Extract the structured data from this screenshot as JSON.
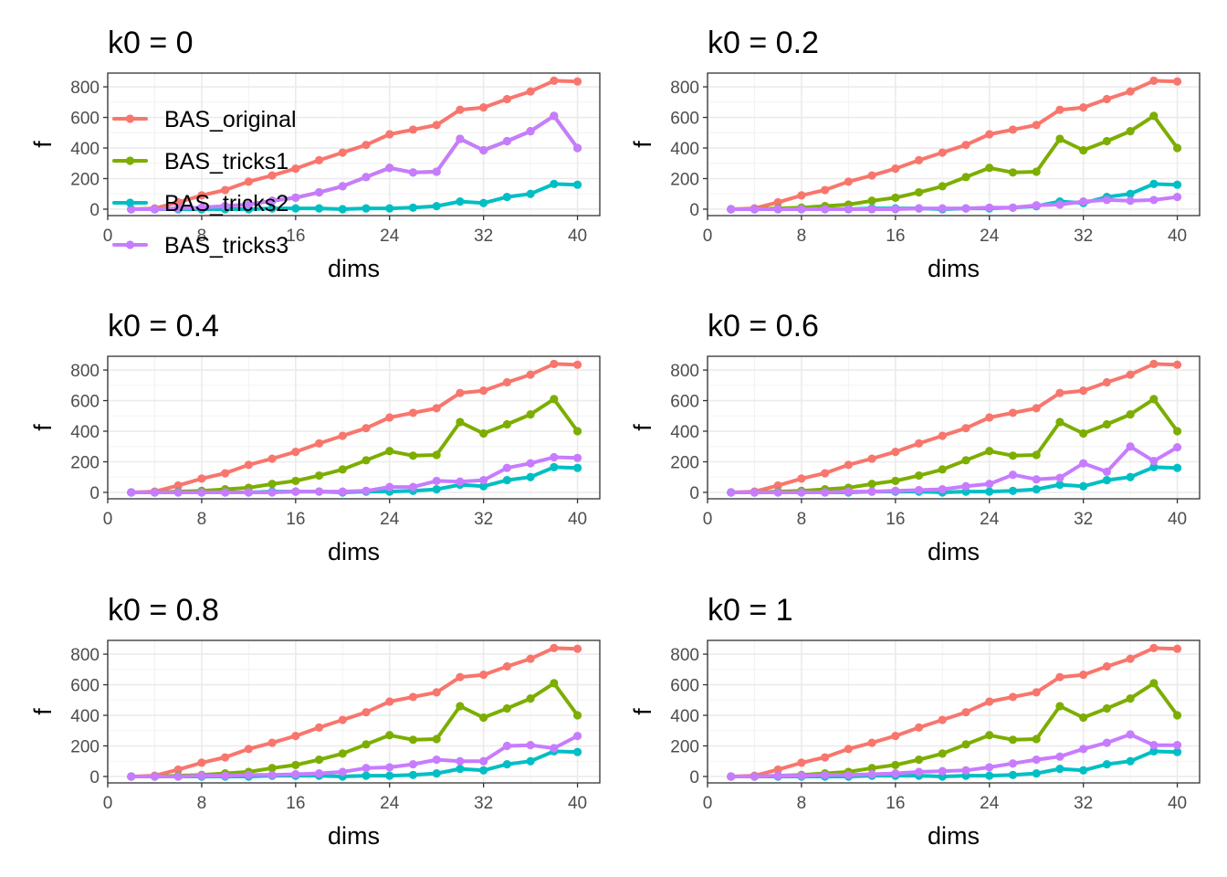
{
  "chart_data": {
    "type": "line",
    "xlabel": "dims",
    "ylabel": "f",
    "xlim": [
      0,
      41.9
    ],
    "ylim": [
      -42,
      890
    ],
    "x_ticks": [
      0,
      8,
      16,
      24,
      32,
      40
    ],
    "y_ticks": [
      0,
      200,
      400,
      600,
      800
    ],
    "grid": true,
    "legend": {
      "placement": "top-left, inside first panel",
      "entries": [
        "BAS_original",
        "BAS_tricks1",
        "BAS_tricks2",
        "BAS_tricks3"
      ]
    },
    "colors": {
      "BAS_original": "#F8766D",
      "BAS_tricks1": "#7CAE00",
      "BAS_tricks2": "#00BFC4",
      "BAS_tricks3": "#C77CFF"
    },
    "x": [
      2,
      4,
      6,
      8,
      10,
      12,
      14,
      16,
      18,
      20,
      22,
      24,
      26,
      28,
      30,
      32,
      34,
      36,
      38,
      40
    ],
    "panels": [
      {
        "title": "k0 = 0",
        "series": [
          {
            "name": "BAS_original",
            "values": [
              0,
              5,
              45,
              90,
              125,
              180,
              220,
              265,
              320,
              370,
              420,
              490,
              520,
              550,
              650,
              665,
              720,
              770,
              840,
              835
            ]
          },
          {
            "name": "BAS_tricks1",
            "values": [
              0,
              0,
              5,
              10,
              20,
              30,
              55,
              75,
              110,
              150,
              210,
              270,
              240,
              245,
              460,
              385,
              445,
              510,
              610,
              400
            ]
          },
          {
            "name": "BAS_tricks2",
            "values": [
              0,
              0,
              0,
              0,
              0,
              0,
              5,
              5,
              5,
              0,
              5,
              5,
              10,
              20,
              50,
              40,
              80,
              100,
              165,
              160
            ]
          },
          {
            "name": "BAS_tricks3",
            "values": [
              0,
              0,
              5,
              10,
              20,
              30,
              55,
              75,
              110,
              150,
              210,
              270,
              240,
              245,
              460,
              385,
              445,
              510,
              610,
              400
            ]
          }
        ]
      },
      {
        "title": "k0 = 0.2",
        "series": [
          {
            "name": "BAS_original",
            "values": [
              0,
              5,
              45,
              90,
              125,
              180,
              220,
              265,
              320,
              370,
              420,
              490,
              520,
              550,
              650,
              665,
              720,
              770,
              840,
              835
            ]
          },
          {
            "name": "BAS_tricks1",
            "values": [
              0,
              0,
              5,
              10,
              20,
              30,
              55,
              75,
              110,
              150,
              210,
              270,
              240,
              245,
              460,
              385,
              445,
              510,
              610,
              400
            ]
          },
          {
            "name": "BAS_tricks2",
            "values": [
              0,
              0,
              0,
              0,
              0,
              0,
              5,
              5,
              5,
              0,
              5,
              5,
              10,
              20,
              50,
              40,
              80,
              100,
              165,
              160
            ]
          },
          {
            "name": "BAS_tricks3",
            "values": [
              0,
              0,
              0,
              0,
              0,
              0,
              0,
              0,
              5,
              5,
              5,
              10,
              10,
              25,
              30,
              50,
              60,
              55,
              60,
              80
            ]
          }
        ]
      },
      {
        "title": "k0 = 0.4",
        "series": [
          {
            "name": "BAS_original",
            "values": [
              0,
              5,
              45,
              90,
              125,
              180,
              220,
              265,
              320,
              370,
              420,
              490,
              520,
              550,
              650,
              665,
              720,
              770,
              840,
              835
            ]
          },
          {
            "name": "BAS_tricks1",
            "values": [
              0,
              0,
              5,
              10,
              20,
              30,
              55,
              75,
              110,
              150,
              210,
              270,
              240,
              245,
              460,
              385,
              445,
              510,
              610,
              400
            ]
          },
          {
            "name": "BAS_tricks2",
            "values": [
              0,
              0,
              0,
              0,
              0,
              0,
              5,
              5,
              5,
              0,
              5,
              5,
              10,
              20,
              50,
              40,
              80,
              100,
              165,
              160
            ]
          },
          {
            "name": "BAS_tricks3",
            "values": [
              0,
              0,
              0,
              0,
              0,
              0,
              0,
              5,
              5,
              5,
              10,
              35,
              35,
              75,
              70,
              80,
              160,
              190,
              230,
              225
            ]
          }
        ]
      },
      {
        "title": "k0 = 0.6",
        "series": [
          {
            "name": "BAS_original",
            "values": [
              0,
              5,
              45,
              90,
              125,
              180,
              220,
              265,
              320,
              370,
              420,
              490,
              520,
              550,
              650,
              665,
              720,
              770,
              840,
              835
            ]
          },
          {
            "name": "BAS_tricks1",
            "values": [
              0,
              0,
              5,
              10,
              20,
              30,
              55,
              75,
              110,
              150,
              210,
              270,
              240,
              245,
              460,
              385,
              445,
              510,
              610,
              400
            ]
          },
          {
            "name": "BAS_tricks2",
            "values": [
              0,
              0,
              0,
              0,
              0,
              0,
              5,
              5,
              5,
              0,
              5,
              5,
              10,
              20,
              50,
              40,
              80,
              100,
              165,
              160
            ]
          },
          {
            "name": "BAS_tricks3",
            "values": [
              0,
              0,
              0,
              0,
              0,
              5,
              5,
              10,
              15,
              20,
              40,
              55,
              115,
              85,
              95,
              190,
              135,
              300,
              205,
              295
            ]
          }
        ]
      },
      {
        "title": "k0 = 0.8",
        "series": [
          {
            "name": "BAS_original",
            "values": [
              0,
              5,
              45,
              90,
              125,
              180,
              220,
              265,
              320,
              370,
              420,
              490,
              520,
              550,
              650,
              665,
              720,
              770,
              840,
              835
            ]
          },
          {
            "name": "BAS_tricks1",
            "values": [
              0,
              0,
              5,
              10,
              20,
              30,
              55,
              75,
              110,
              150,
              210,
              270,
              240,
              245,
              460,
              385,
              445,
              510,
              610,
              400
            ]
          },
          {
            "name": "BAS_tricks2",
            "values": [
              0,
              0,
              0,
              0,
              0,
              0,
              5,
              5,
              5,
              0,
              5,
              5,
              10,
              20,
              50,
              40,
              80,
              100,
              165,
              160
            ]
          },
          {
            "name": "BAS_tricks3",
            "values": [
              0,
              0,
              0,
              5,
              5,
              10,
              10,
              15,
              20,
              30,
              55,
              60,
              80,
              110,
              100,
              100,
              200,
              205,
              185,
              265
            ]
          }
        ]
      },
      {
        "title": "k0 = 1",
        "series": [
          {
            "name": "BAS_original",
            "values": [
              0,
              5,
              45,
              90,
              125,
              180,
              220,
              265,
              320,
              370,
              420,
              490,
              520,
              550,
              650,
              665,
              720,
              770,
              840,
              835
            ]
          },
          {
            "name": "BAS_tricks1",
            "values": [
              0,
              0,
              5,
              10,
              20,
              30,
              55,
              75,
              110,
              150,
              210,
              270,
              240,
              245,
              460,
              385,
              445,
              510,
              610,
              400
            ]
          },
          {
            "name": "BAS_tricks2",
            "values": [
              0,
              0,
              0,
              0,
              0,
              0,
              5,
              5,
              5,
              0,
              5,
              5,
              10,
              20,
              50,
              40,
              80,
              100,
              165,
              160
            ]
          },
          {
            "name": "BAS_tricks3",
            "values": [
              0,
              0,
              5,
              5,
              10,
              10,
              15,
              20,
              30,
              35,
              40,
              60,
              85,
              110,
              130,
              180,
              220,
              275,
              205,
              205
            ]
          }
        ]
      }
    ]
  }
}
